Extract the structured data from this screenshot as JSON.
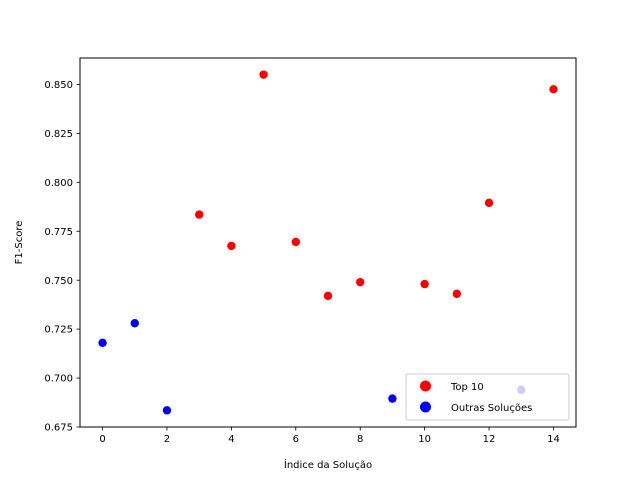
{
  "chart_data": {
    "type": "scatter",
    "xlabel": "Índice da Solução",
    "ylabel": "F1-Score",
    "xlim": [
      -0.7,
      14.7
    ],
    "ylim": [
      0.675,
      0.8635
    ],
    "xticks": [
      "0",
      "2",
      "4",
      "6",
      "8",
      "10",
      "12",
      "14"
    ],
    "yticks": [
      "0.675",
      "0.700",
      "0.725",
      "0.750",
      "0.775",
      "0.800",
      "0.825",
      "0.850"
    ],
    "grid": false,
    "legend_position": "lower-right",
    "series": [
      {
        "name": "Top 10",
        "color": "#ff0000",
        "points": [
          {
            "x": 3,
            "y": 0.7835
          },
          {
            "x": 4,
            "y": 0.7675
          },
          {
            "x": 5,
            "y": 0.855
          },
          {
            "x": 6,
            "y": 0.7695
          },
          {
            "x": 7,
            "y": 0.742
          },
          {
            "x": 8,
            "y": 0.749
          },
          {
            "x": 10,
            "y": 0.748
          },
          {
            "x": 11,
            "y": 0.743
          },
          {
            "x": 12,
            "y": 0.7895
          },
          {
            "x": 14,
            "y": 0.8475
          }
        ]
      },
      {
        "name": "Outras Soluções",
        "color": "#0000ff",
        "points": [
          {
            "x": 0,
            "y": 0.718
          },
          {
            "x": 1,
            "y": 0.728
          },
          {
            "x": 2,
            "y": 0.6835
          },
          {
            "x": 9,
            "y": 0.6895
          },
          {
            "x": 13,
            "y": 0.694
          }
        ]
      }
    ]
  }
}
